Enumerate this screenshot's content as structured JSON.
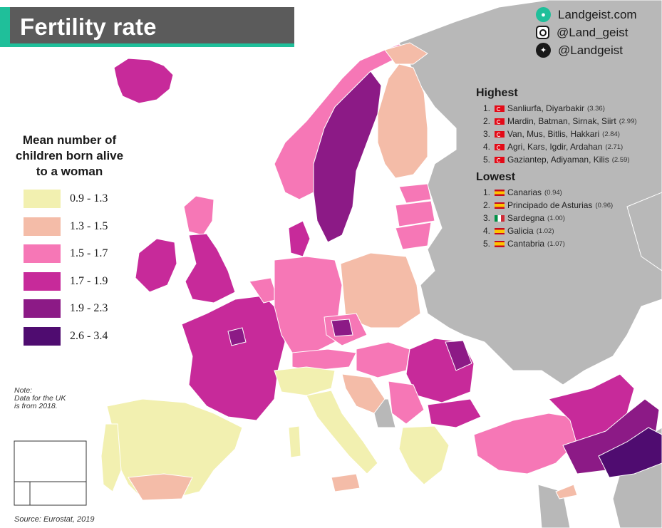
{
  "title": "Fertility rate",
  "brand": {
    "website": "Landgeist.com",
    "instagram": "@Land_geist",
    "twitter": "@Landgeist"
  },
  "legend": {
    "title_lines": [
      "Mean number of",
      "children born alive",
      "to a woman"
    ],
    "items": [
      {
        "label": "0.9 - 1.3",
        "color": "#f2f0b0"
      },
      {
        "label": "1.3 - 1.5",
        "color": "#f4bca8"
      },
      {
        "label": "1.5 - 1.7",
        "color": "#f677b6"
      },
      {
        "label": "1.7 - 1.9",
        "color": "#c72a9a"
      },
      {
        "label": "1.9 - 2.3",
        "color": "#8c1a86"
      },
      {
        "label": "2.6 - 3.4",
        "color": "#4f0c70"
      }
    ]
  },
  "note_lines": [
    "Note:",
    "Data for the UK",
    "is from 2018."
  ],
  "source": "Source: Eurostat, 2019",
  "highest": {
    "title": "Highest",
    "items": [
      {
        "rank": "1.",
        "flag": "turkey-flag",
        "name": "Sanliurfa, Diyarbakir",
        "value": "(3.36)"
      },
      {
        "rank": "2.",
        "flag": "turkey-flag",
        "name": "Mardin, Batman, Sirnak, Siirt",
        "value": "(2.99)"
      },
      {
        "rank": "3.",
        "flag": "turkey-flag",
        "name": "Van, Mus, Bitlis, Hakkari",
        "value": "(2.84)"
      },
      {
        "rank": "4.",
        "flag": "turkey-flag",
        "name": "Agri, Kars, Igdir, Ardahan",
        "value": "(2.71)"
      },
      {
        "rank": "5.",
        "flag": "turkey-flag",
        "name": "Gaziantep, Adiyaman, Kilis",
        "value": "(2.59)"
      }
    ]
  },
  "lowest": {
    "title": "Lowest",
    "items": [
      {
        "rank": "1.",
        "flag": "spain-flag",
        "name": "Canarias",
        "value": "(0.94)"
      },
      {
        "rank": "2.",
        "flag": "spain-flag",
        "name": "Principado de Asturias",
        "value": "(0.96)"
      },
      {
        "rank": "3.",
        "flag": "italy-flag",
        "name": "Sardegna",
        "value": "(1.00)"
      },
      {
        "rank": "4.",
        "flag": "spain-flag",
        "name": "Galicia",
        "value": "(1.02)"
      },
      {
        "rank": "5.",
        "flag": "spain-flag",
        "name": "Cantabria",
        "value": "(1.07)"
      }
    ]
  },
  "colors": {
    "accent": "#1fbf9a",
    "banner": "#5b5b5b",
    "non_data_land": "#b8b8b8"
  }
}
